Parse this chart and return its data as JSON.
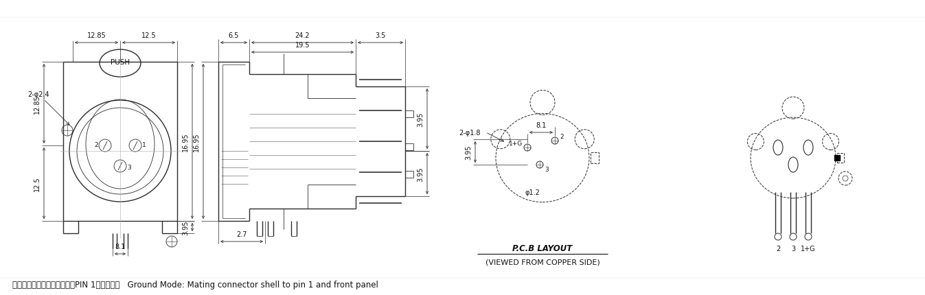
{
  "bg_color": "#ffffff",
  "lc": "#2a2a2a",
  "dc": "#2a2a2a",
  "tc": "#111111",
  "fs": 7.0,
  "fs_footer": 8.5,
  "footer_cn": "接地方式：相配的插头外壳与PIN 1及面板连接",
  "footer_en": "   Ground Mode: Mating connector shell to pin 1 and front panel",
  "pcb_label1": "P.C.B LAYOUT",
  "pcb_label2": "(VIEWED FROM COPPER SIDE)"
}
